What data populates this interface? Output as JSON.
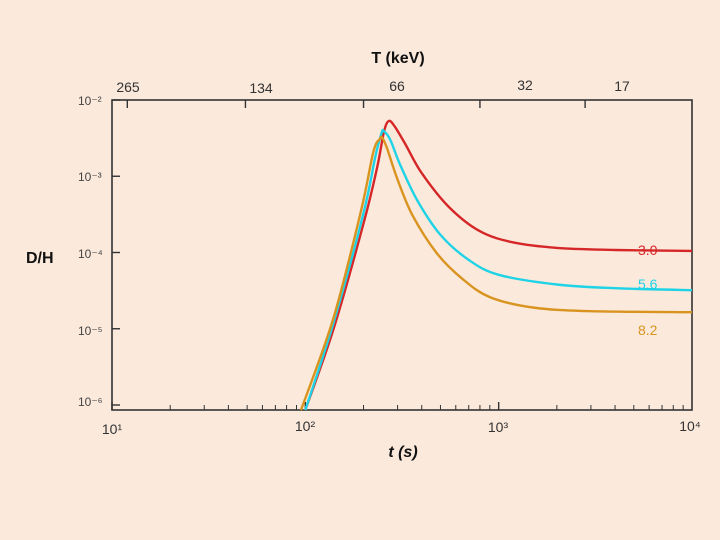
{
  "chart_data": {
    "type": "line",
    "title": "",
    "xlabel": "t (s)",
    "x2label": "T (keV)",
    "ylabel": "D/H",
    "xscale": "log",
    "yscale": "log",
    "xlim": [
      10,
      10000
    ],
    "ylim": [
      1e-06,
      0.01
    ],
    "x_ticks": [
      {
        "value": 10,
        "label": "10¹"
      },
      {
        "value": 100,
        "label": "10²"
      },
      {
        "value": 1000,
        "label": "10³"
      },
      {
        "value": 10000,
        "label": "10⁴"
      }
    ],
    "y_ticks": [
      {
        "value": 0.01,
        "label": "10⁻²"
      },
      {
        "value": 0.001,
        "label": "10⁻³"
      },
      {
        "value": 0.0001,
        "label": "10⁻⁴"
      },
      {
        "value": 1e-05,
        "label": "10⁻⁵"
      },
      {
        "value": 1e-06,
        "label": "10⁻⁶"
      }
    ],
    "top_ticks": [
      {
        "t": 12,
        "label": "265"
      },
      {
        "t": 49,
        "label": "134"
      },
      {
        "t": 200,
        "label": "66"
      },
      {
        "t": 800,
        "label": "32"
      },
      {
        "t": 2800,
        "label": "17"
      }
    ],
    "series": [
      {
        "name": "3.0",
        "color": "#d62728",
        "points": [
          [
            100,
            7.9e-07
          ],
          [
            140,
            1e-05
          ],
          [
            200,
            0.00024
          ],
          [
            235,
            0.0013
          ],
          [
            255,
            0.0038
          ],
          [
            270,
            0.0053
          ],
          [
            290,
            0.0045
          ],
          [
            330,
            0.0026
          ],
          [
            400,
            0.0011
          ],
          [
            550,
            0.0004
          ],
          [
            800,
            0.00019
          ],
          [
            1200,
            0.000135
          ],
          [
            2000,
            0.000115
          ],
          [
            4000,
            0.000108
          ],
          [
            10000,
            0.000105
          ]
        ]
      },
      {
        "name": "5.6",
        "color": "#1fd3e6",
        "points": [
          [
            100,
            7.9e-07
          ],
          [
            140,
            1.2e-05
          ],
          [
            200,
            0.00033
          ],
          [
            230,
            0.0018
          ],
          [
            248,
            0.0037
          ],
          [
            255,
            0.0039
          ],
          [
            275,
            0.003
          ],
          [
            310,
            0.0014
          ],
          [
            380,
            0.00048
          ],
          [
            500,
            0.00017
          ],
          [
            700,
            8e-05
          ],
          [
            1000,
            5.1e-05
          ],
          [
            2000,
            3.8e-05
          ],
          [
            4000,
            3.4e-05
          ],
          [
            10000,
            3.2e-05
          ]
        ]
      },
      {
        "name": "8.2",
        "color": "#d99420",
        "points": [
          [
            95,
            7.9e-07
          ],
          [
            140,
            1.4e-05
          ],
          [
            195,
            0.00037
          ],
          [
            225,
            0.0021
          ],
          [
            243,
            0.0031
          ],
          [
            250,
            0.0032
          ],
          [
            265,
            0.0023
          ],
          [
            300,
            0.0009
          ],
          [
            360,
            0.0003
          ],
          [
            480,
            9.7e-05
          ],
          [
            650,
            4.5e-05
          ],
          [
            900,
            2.6e-05
          ],
          [
            1500,
            1.9e-05
          ],
          [
            3000,
            1.7e-05
          ],
          [
            10000,
            1.65e-05
          ]
        ]
      }
    ],
    "legend": "inline labels at right end of each line"
  }
}
